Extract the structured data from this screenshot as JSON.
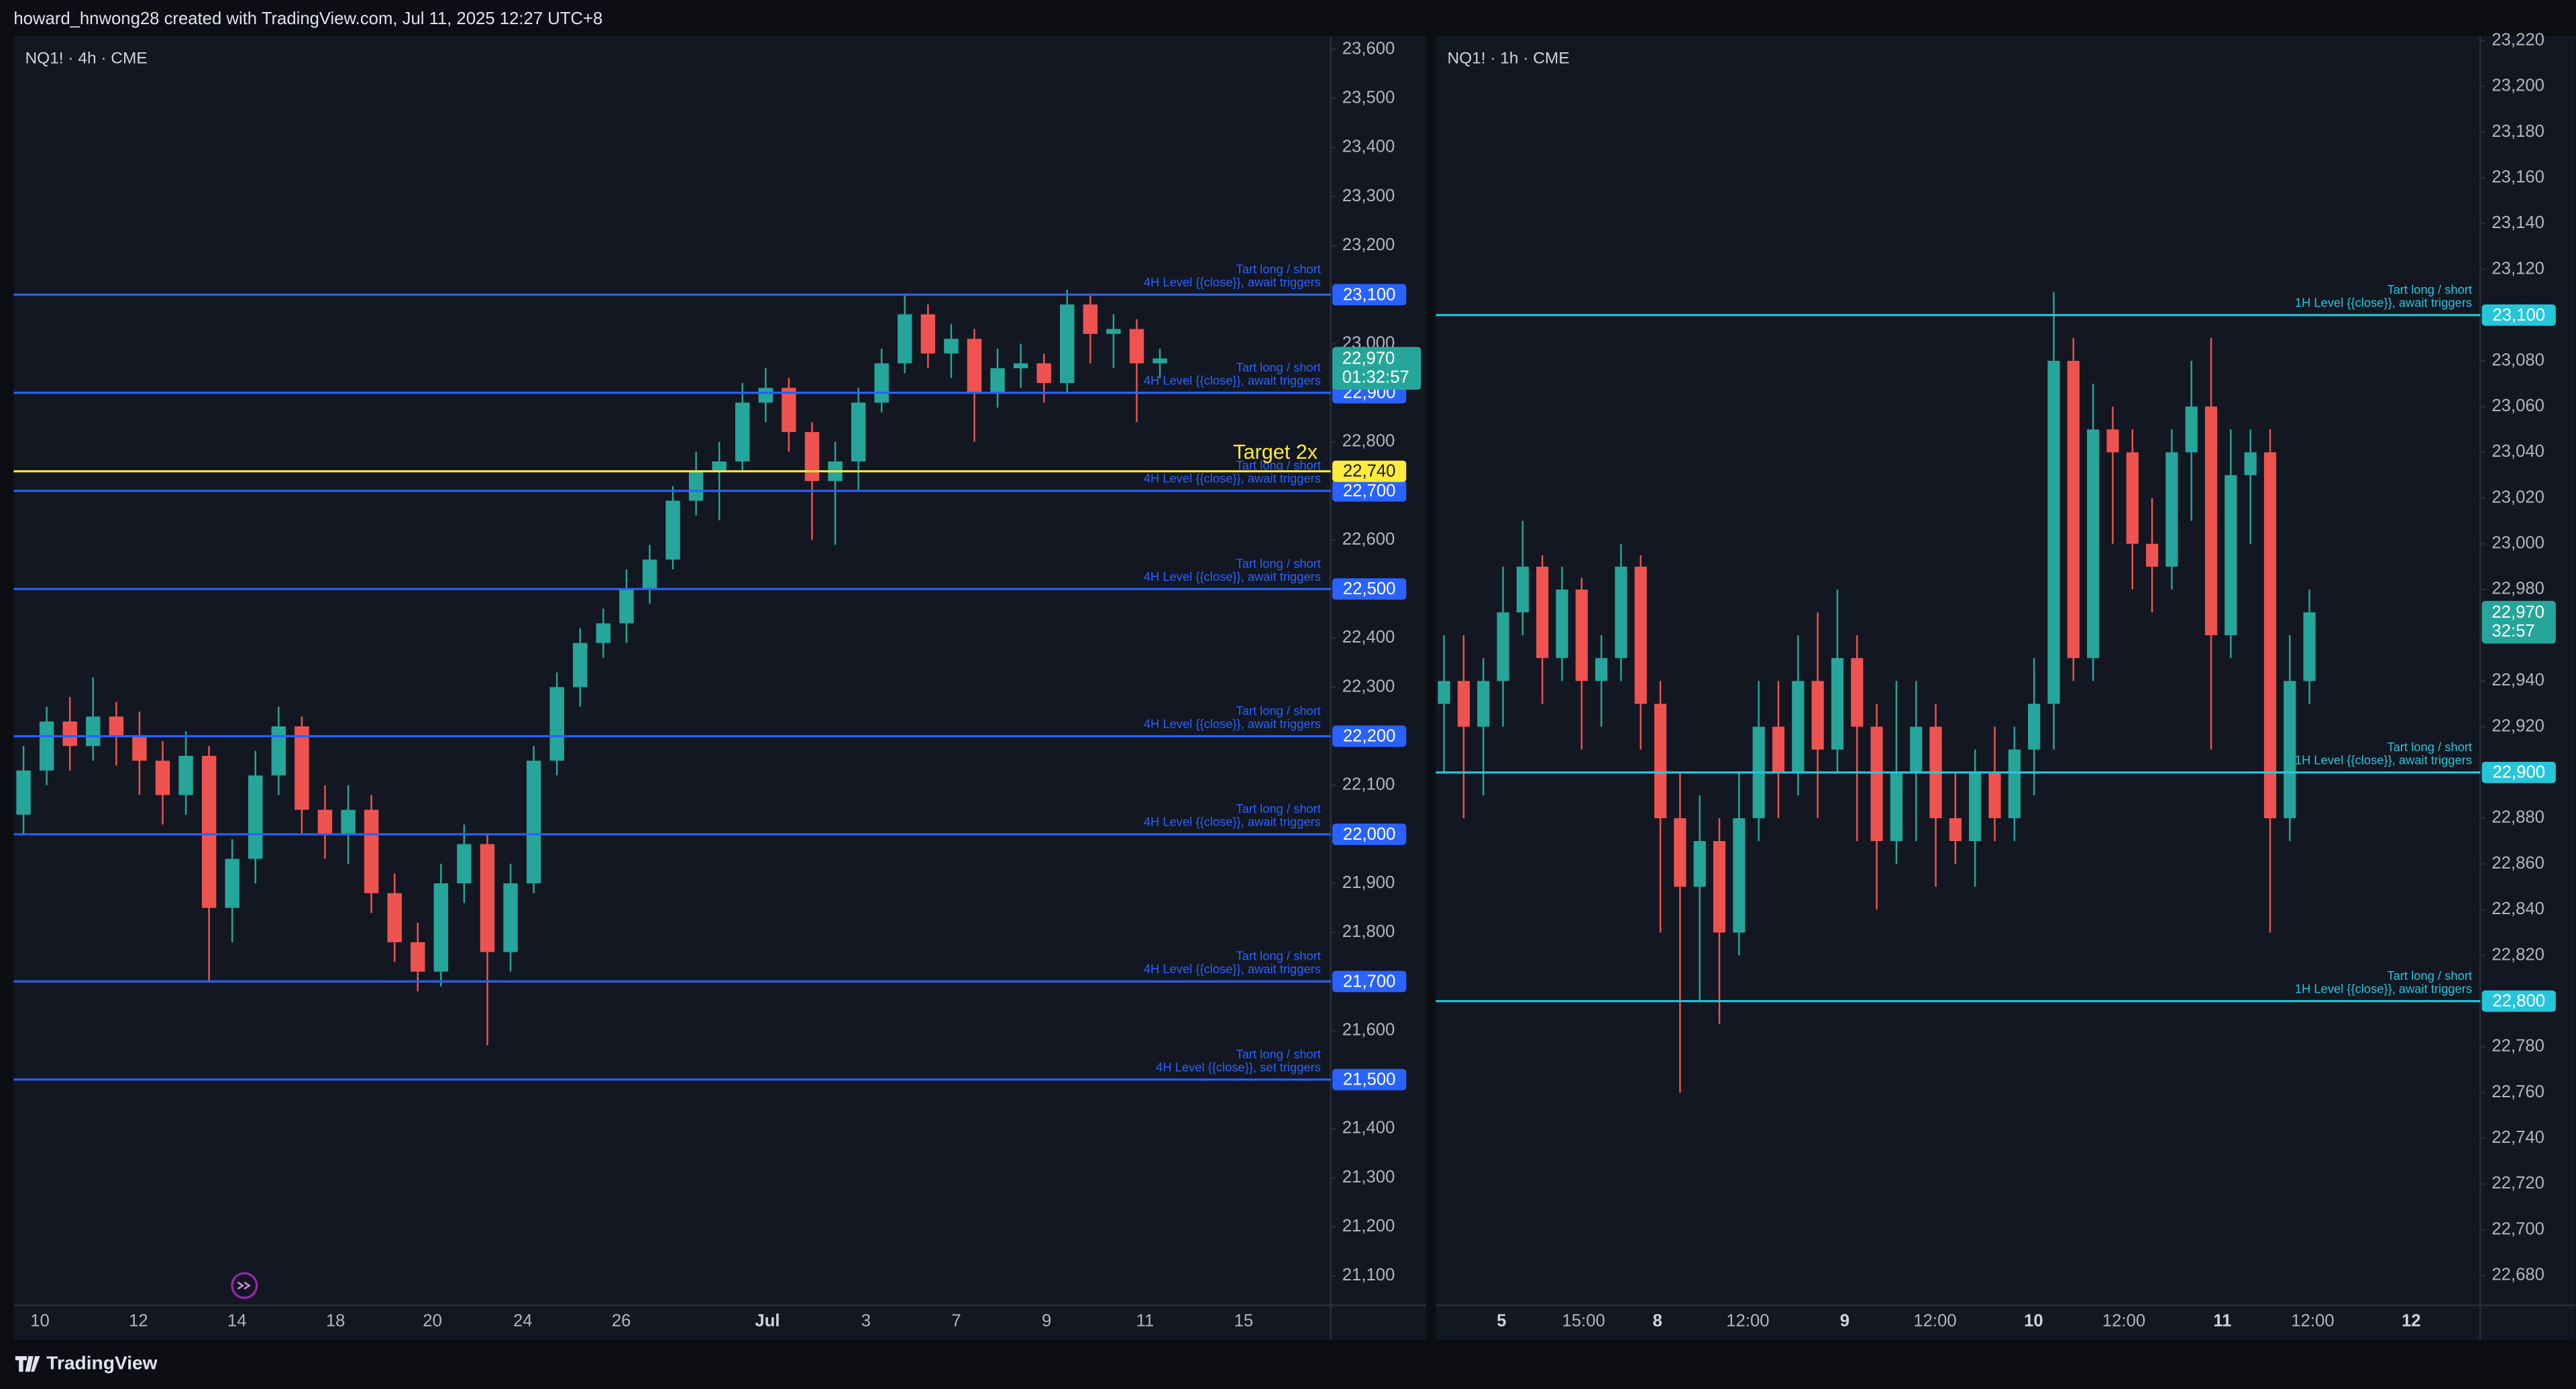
{
  "header": "howard_hnwong28 created with TradingView.com, Jul 11, 2025 12:27 UTC+8",
  "footer": "TradingView",
  "chart_data": [
    {
      "type": "candlestick",
      "title": "NQ1! · 4h · CME",
      "up_color": "#26a69a",
      "down_color": "#ef5350",
      "ylim": [
        21040,
        23627
      ],
      "yticks": [
        {
          "value": 21100,
          "label": "21,100"
        },
        {
          "value": 21200,
          "label": "21,200"
        },
        {
          "value": 21300,
          "label": "21,300"
        },
        {
          "value": 21400,
          "label": "21,400"
        },
        {
          "value": 21500,
          "label": "21,500"
        },
        {
          "value": 21600,
          "label": "21,600"
        },
        {
          "value": 21700,
          "label": "21,700"
        },
        {
          "value": 21800,
          "label": "21,800"
        },
        {
          "value": 21900,
          "label": "21,900"
        },
        {
          "value": 22000,
          "label": "22,000"
        },
        {
          "value": 22100,
          "label": "22,100"
        },
        {
          "value": 22200,
          "label": "22,200"
        },
        {
          "value": 22300,
          "label": "22,300"
        },
        {
          "value": 22400,
          "label": "22,400"
        },
        {
          "value": 22500,
          "label": "22,500"
        },
        {
          "value": 22600,
          "label": "22,600"
        },
        {
          "value": 22700,
          "label": "22,700"
        },
        {
          "value": 22800,
          "label": "22,800"
        },
        {
          "value": 22900,
          "label": "22,900"
        },
        {
          "value": 23000,
          "label": "23,000"
        },
        {
          "value": 23100,
          "label": "23,100"
        },
        {
          "value": 23200,
          "label": "23,200"
        },
        {
          "value": 23300,
          "label": "23,300"
        },
        {
          "value": 23400,
          "label": "23,400"
        },
        {
          "value": 23500,
          "label": "23,500"
        },
        {
          "value": 23600,
          "label": "23,600"
        }
      ],
      "xticks": [
        "10",
        "12",
        "14",
        "18",
        "20",
        "24",
        "26",
        "Jul",
        "3",
        "7",
        "9",
        "11",
        "15"
      ],
      "open": [
        22040,
        22130,
        22230,
        22180,
        22240,
        22200,
        22150,
        22080,
        22160,
        21850,
        21950,
        22120,
        22220,
        22050,
        22000,
        22050,
        21880,
        21780,
        21720,
        21900,
        21980,
        21760,
        21900,
        22150,
        22300,
        22390,
        22430,
        22500,
        22560,
        22680,
        22740,
        22760,
        22880,
        22910,
        22820,
        22720,
        22760,
        22880,
        22960,
        23060,
        22980,
        23010,
        22900,
        22950,
        22960,
        22920,
        23080,
        23020,
        23030,
        22960
      ],
      "high": [
        22180,
        22260,
        22280,
        22320,
        22270,
        22250,
        22190,
        22210,
        22180,
        21990,
        22170,
        22260,
        22240,
        22100,
        22100,
        22080,
        21920,
        21820,
        21940,
        22020,
        22000,
        21940,
        22180,
        22330,
        22420,
        22460,
        22540,
        22590,
        22710,
        22780,
        22800,
        22920,
        22950,
        22930,
        22840,
        22800,
        22910,
        22990,
        23100,
        23080,
        23040,
        23030,
        22990,
        23000,
        22980,
        23110,
        23100,
        23060,
        23050,
        22990
      ],
      "low": [
        22000,
        22100,
        22130,
        22150,
        22140,
        22080,
        22020,
        22040,
        21700,
        21780,
        21900,
        22080,
        22000,
        21950,
        21940,
        21840,
        21740,
        21680,
        21690,
        21860,
        21570,
        21720,
        21880,
        22120,
        22260,
        22360,
        22390,
        22470,
        22540,
        22650,
        22640,
        22740,
        22840,
        22780,
        22600,
        22590,
        22700,
        22860,
        22940,
        22950,
        22930,
        22800,
        22870,
        22910,
        22880,
        22900,
        22960,
        22950,
        22840,
        22930
      ],
      "close": [
        22130,
        22230,
        22180,
        22240,
        22200,
        22150,
        22080,
        22160,
        21850,
        21950,
        22120,
        22220,
        22050,
        22000,
        22050,
        21880,
        21780,
        21720,
        21900,
        21980,
        21760,
        21900,
        22150,
        22300,
        22390,
        22430,
        22500,
        22560,
        22680,
        22740,
        22760,
        22880,
        22910,
        22820,
        22720,
        22760,
        22880,
        22960,
        23060,
        22980,
        23010,
        22900,
        22950,
        22960,
        22920,
        23080,
        23020,
        23030,
        22960,
        22970
      ],
      "levels": [
        {
          "price": {
            "value": 23100,
            "label": "23,100"
          },
          "color": "#2962ff",
          "text": [
            "Tart long / short",
            "4H Level {{close}}, await triggers"
          ]
        },
        {
          "price": {
            "value": 22900,
            "label": "22,900"
          },
          "color": "#2962ff",
          "text": [
            "Tart long / short",
            "4H Level {{close}}, await triggers"
          ]
        },
        {
          "price": {
            "value": 22700,
            "label": "22,700"
          },
          "color": "#2962ff",
          "text": [
            "Tart long / short",
            "4H Level {{close}}, await triggers"
          ]
        },
        {
          "price": {
            "value": 22740,
            "label": "22,740"
          },
          "color": "#ffeb3b",
          "text": [
            "Target 2x"
          ]
        },
        {
          "price": {
            "value": 22500,
            "label": "22,500"
          },
          "color": "#2962ff",
          "text": [
            "Tart long / short",
            "4H Level {{close}}, await triggers"
          ]
        },
        {
          "price": {
            "value": 22200,
            "label": "22,200"
          },
          "color": "#2962ff",
          "text": [
            "Tart long / short",
            "4H Level {{close}}, await triggers"
          ]
        },
        {
          "price": {
            "value": 22000,
            "label": "22,000"
          },
          "color": "#2962ff",
          "text": [
            "Tart long / short",
            "4H Level {{close}}, await triggers"
          ]
        },
        {
          "price": {
            "value": 21700,
            "label": "21,700"
          },
          "color": "#2962ff",
          "text": [
            "Tart long / short",
            "4H Level {{close}}, await triggers"
          ]
        },
        {
          "price": {
            "value": 21500,
            "label": "21,500"
          },
          "color": "#2962ff",
          "text": [
            "Tart long / short",
            "4H Level {{close}}, set triggers"
          ]
        }
      ],
      "last_price": {
        "value": 22970,
        "label": "22,970"
      },
      "countdown": "01:32:57",
      "last_color": "#26a69a"
    },
    {
      "type": "candlestick",
      "title": "NQ1! · 1h · CME",
      "up_color": "#26a69a",
      "down_color": "#ef5350",
      "ylim": [
        22667,
        23222
      ],
      "yticks": [
        {
          "value": 22680,
          "label": "22,680"
        },
        {
          "value": 22700,
          "label": "22,700"
        },
        {
          "value": 22720,
          "label": "22,720"
        },
        {
          "value": 22740,
          "label": "22,740"
        },
        {
          "value": 22760,
          "label": "22,760"
        },
        {
          "value": 22780,
          "label": "22,780"
        },
        {
          "value": 22800,
          "label": "22,800"
        },
        {
          "value": 22820,
          "label": "22,820"
        },
        {
          "value": 22840,
          "label": "22,840"
        },
        {
          "value": 22860,
          "label": "22,860"
        },
        {
          "value": 22880,
          "label": "22,880"
        },
        {
          "value": 22900,
          "label": "22,900"
        },
        {
          "value": 22920,
          "label": "22,920"
        },
        {
          "value": 22940,
          "label": "22,940"
        },
        {
          "value": 22960,
          "label": "22,960"
        },
        {
          "value": 22980,
          "label": "22,980"
        },
        {
          "value": 23000,
          "label": "23,000"
        },
        {
          "value": 23020,
          "label": "23,020"
        },
        {
          "value": 23040,
          "label": "23,040"
        },
        {
          "value": 23060,
          "label": "23,060"
        },
        {
          "value": 23080,
          "label": "23,080"
        },
        {
          "value": 23100,
          "label": "23,100"
        },
        {
          "value": 23120,
          "label": "23,120"
        },
        {
          "value": 23140,
          "label": "23,140"
        },
        {
          "value": 23160,
          "label": "23,160"
        },
        {
          "value": 23180,
          "label": "23,180"
        },
        {
          "value": 23200,
          "label": "23,200"
        },
        {
          "value": 23220,
          "label": "23,220"
        }
      ],
      "xticks": [
        "5",
        "15:00",
        "8",
        "12:00",
        "9",
        "12:00",
        "10",
        "12:00",
        "11",
        "12:00",
        "12"
      ],
      "open": [
        22930,
        22940,
        22920,
        22940,
        22970,
        22990,
        22950,
        22980,
        22940,
        22950,
        22990,
        22930,
        22880,
        22850,
        22870,
        22830,
        22880,
        22920,
        22900,
        22940,
        22910,
        22950,
        22920,
        22870,
        22900,
        22920,
        22880,
        22870,
        22900,
        22880,
        22910,
        22930,
        23080,
        22950,
        23050,
        23040,
        23000,
        22990,
        23040,
        23060,
        22960,
        23030,
        23040,
        22880,
        22940
      ],
      "high": [
        22960,
        22960,
        22950,
        22990,
        23010,
        22995,
        22990,
        22985,
        22960,
        23000,
        22995,
        22940,
        22900,
        22890,
        22880,
        22900,
        22940,
        22940,
        22960,
        22970,
        22980,
        22960,
        22930,
        22940,
        22940,
        22930,
        22900,
        22910,
        22920,
        22920,
        22950,
        23110,
        23090,
        23070,
        23060,
        23050,
        23020,
        23050,
        23080,
        23090,
        23050,
        23050,
        23050,
        22960,
        22980
      ],
      "low": [
        22900,
        22880,
        22890,
        22920,
        22960,
        22930,
        22940,
        22910,
        22920,
        22940,
        22910,
        22830,
        22760,
        22800,
        22790,
        22820,
        22870,
        22880,
        22890,
        22880,
        22900,
        22870,
        22840,
        22860,
        22870,
        22850,
        22860,
        22850,
        22870,
        22870,
        22890,
        22910,
        22940,
        22940,
        23000,
        22980,
        22970,
        22980,
        23010,
        22910,
        22950,
        23000,
        22830,
        22870,
        22930
      ],
      "close": [
        22940,
        22920,
        22940,
        22970,
        22990,
        22950,
        22980,
        22940,
        22950,
        22990,
        22930,
        22880,
        22850,
        22870,
        22830,
        22880,
        22920,
        22900,
        22940,
        22910,
        22950,
        22920,
        22870,
        22900,
        22920,
        22880,
        22870,
        22900,
        22880,
        22910,
        22930,
        23080,
        22950,
        23050,
        23040,
        23000,
        22990,
        23040,
        23060,
        22960,
        23030,
        23040,
        22880,
        22940,
        22970
      ],
      "levels": [
        {
          "price": {
            "value": 23100,
            "label": "23,100"
          },
          "color": "#26c6da",
          "text": [
            "Tart long / short",
            "1H Level {{close}}, await triggers"
          ]
        },
        {
          "price": {
            "value": 22900,
            "label": "22,900"
          },
          "color": "#26c6da",
          "text": [
            "Tart long / short",
            "1H Level {{close}}, await triggers"
          ]
        },
        {
          "price": {
            "value": 22800,
            "label": "22,800"
          },
          "color": "#26c6da",
          "text": [
            "Tart long / short",
            "1H Level {{close}}, await triggers"
          ]
        }
      ],
      "last_price": {
        "value": 22970,
        "label": "22,970"
      },
      "countdown": "32:57",
      "last_color": "#26a69a"
    }
  ]
}
